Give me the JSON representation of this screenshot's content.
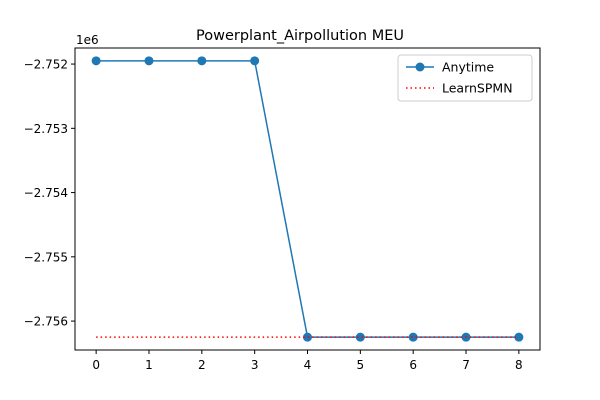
{
  "chart_data": {
    "type": "line",
    "title": "Powerplant_Airpollution MEU",
    "xlabel": "",
    "ylabel": "",
    "offset_label": "1e6",
    "x": [
      0,
      1,
      2,
      3,
      4,
      5,
      6,
      7,
      8
    ],
    "x_ticks": [
      "0",
      "1",
      "2",
      "3",
      "4",
      "5",
      "6",
      "7",
      "8"
    ],
    "y_ticks": [
      {
        "value": -2.752,
        "label": "−2.752"
      },
      {
        "value": -2.753,
        "label": "−2.753"
      },
      {
        "value": -2.754,
        "label": "−2.754"
      },
      {
        "value": -2.755,
        "label": "−2.755"
      },
      {
        "value": -2.756,
        "label": "−2.756"
      }
    ],
    "xlim": [
      -0.4,
      8.4
    ],
    "ylim": [
      -2.75645,
      -2.75175
    ],
    "grid": false,
    "legend_position": "top-right",
    "series": [
      {
        "name": "Anytime",
        "style": "line-with-markers",
        "color": "#1f77b4",
        "values": [
          -2.75195,
          -2.75195,
          -2.75195,
          -2.75195,
          -2.75625,
          -2.75625,
          -2.75625,
          -2.75625,
          -2.75625
        ]
      },
      {
        "name": "LearnSPMN",
        "style": "dotted",
        "color": "#ff0000",
        "values": [
          -2.75625,
          -2.75625,
          -2.75625,
          -2.75625,
          -2.75625,
          -2.75625,
          -2.75625,
          -2.75625,
          -2.75625
        ]
      }
    ]
  }
}
